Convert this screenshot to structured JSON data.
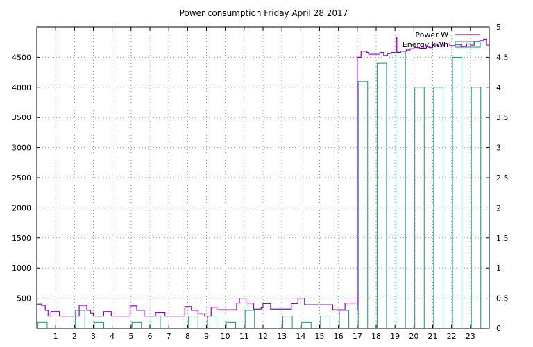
{
  "chart_data": {
    "type": "line",
    "title": "Power consumption Friday April 28 2017",
    "x_ticks": [
      1,
      2,
      3,
      4,
      5,
      6,
      7,
      8,
      9,
      10,
      11,
      12,
      13,
      14,
      15,
      16,
      17,
      18,
      19,
      20,
      21,
      22,
      23
    ],
    "xlim": [
      0,
      24
    ],
    "y_left": {
      "ylim": [
        0,
        5000
      ],
      "ticks": [
        500,
        1000,
        1500,
        2000,
        2500,
        3000,
        3500,
        4000,
        4500
      ]
    },
    "y_right": {
      "ylim": [
        0,
        5
      ],
      "ticks": [
        0,
        0.5,
        1,
        1.5,
        2,
        2.5,
        3,
        3.5,
        4,
        4.5,
        5
      ],
      "tick_labels": [
        "0",
        "0.5",
        "1",
        "1.5",
        "2",
        "2.5",
        "3",
        "3.5",
        "4",
        "4.5",
        "5"
      ]
    },
    "grid": true,
    "legend_position": "top-right",
    "colors": {
      "power": "#9400d3",
      "energy": "#009e73"
    },
    "series": [
      {
        "name": "Power W",
        "axis": "left",
        "style": "steps",
        "points": [
          [
            0.0,
            400
          ],
          [
            0.25,
            380
          ],
          [
            0.45,
            300
          ],
          [
            0.6,
            200
          ],
          [
            0.75,
            280
          ],
          [
            1.2,
            280
          ],
          [
            1.2,
            200
          ],
          [
            2.0,
            200
          ],
          [
            2.25,
            380
          ],
          [
            2.65,
            300
          ],
          [
            2.85,
            250
          ],
          [
            3.0,
            200
          ],
          [
            3.55,
            280
          ],
          [
            3.95,
            200
          ],
          [
            4.9,
            200
          ],
          [
            4.95,
            370
          ],
          [
            5.3,
            300
          ],
          [
            5.7,
            200
          ],
          [
            6.0,
            200
          ],
          [
            6.3,
            260
          ],
          [
            6.8,
            200
          ],
          [
            7.8,
            200
          ],
          [
            7.85,
            360
          ],
          [
            8.2,
            300
          ],
          [
            8.55,
            240
          ],
          [
            8.9,
            200
          ],
          [
            9.25,
            350
          ],
          [
            9.55,
            310
          ],
          [
            10.55,
            310
          ],
          [
            10.6,
            420
          ],
          [
            10.75,
            500
          ],
          [
            11.1,
            420
          ],
          [
            11.5,
            320
          ],
          [
            11.9,
            340
          ],
          [
            12.0,
            410
          ],
          [
            12.4,
            320
          ],
          [
            13.4,
            320
          ],
          [
            13.5,
            410
          ],
          [
            13.85,
            500
          ],
          [
            14.2,
            390
          ],
          [
            15.5,
            390
          ],
          [
            15.7,
            310
          ],
          [
            16.3,
            310
          ],
          [
            16.35,
            420
          ],
          [
            17.0,
            420
          ],
          [
            17.0,
            300
          ],
          [
            17.0,
            4500
          ],
          [
            17.05,
            4500
          ],
          [
            17.2,
            4600
          ],
          [
            17.5,
            4580
          ],
          [
            17.6,
            4550
          ],
          [
            18.0,
            4550
          ],
          [
            18.2,
            4580
          ],
          [
            18.4,
            4530
          ],
          [
            18.6,
            4560
          ],
          [
            18.8,
            4580
          ],
          [
            19.0,
            4570
          ],
          [
            19.05,
            4820
          ],
          [
            19.1,
            4580
          ],
          [
            19.3,
            4600
          ],
          [
            19.6,
            4620
          ],
          [
            19.8,
            4640
          ],
          [
            20.0,
            4660
          ],
          [
            20.3,
            4650
          ],
          [
            20.6,
            4680
          ],
          [
            20.8,
            4660
          ],
          [
            21.0,
            4700
          ],
          [
            21.3,
            4680
          ],
          [
            21.6,
            4720
          ],
          [
            21.9,
            4690
          ],
          [
            22.2,
            4710
          ],
          [
            22.5,
            4680
          ],
          [
            22.8,
            4720
          ],
          [
            23.0,
            4700
          ],
          [
            23.2,
            4760
          ],
          [
            23.5,
            4780
          ],
          [
            23.7,
            4800
          ],
          [
            23.85,
            4700
          ],
          [
            24.0,
            4680
          ]
        ]
      },
      {
        "name": "Energy kWh",
        "axis": "right",
        "style": "boxes",
        "bars": [
          [
            0,
            0.1
          ],
          [
            1,
            0.0
          ],
          [
            2,
            0.3
          ],
          [
            3,
            0.1
          ],
          [
            4,
            0.0
          ],
          [
            5,
            0.1
          ],
          [
            6,
            0.2
          ],
          [
            7,
            0.0
          ],
          [
            8,
            0.2
          ],
          [
            9,
            0.2
          ],
          [
            10,
            0.1
          ],
          [
            11,
            0.3
          ],
          [
            12,
            0.0
          ],
          [
            13,
            0.2
          ],
          [
            14,
            0.1
          ],
          [
            15,
            0.2
          ],
          [
            16,
            0.3
          ],
          [
            17,
            4.1
          ],
          [
            18,
            4.4
          ],
          [
            19,
            4.6
          ],
          [
            20,
            4.0
          ],
          [
            21,
            4.0
          ],
          [
            22,
            4.5
          ],
          [
            23,
            4.0
          ]
        ]
      }
    ]
  }
}
